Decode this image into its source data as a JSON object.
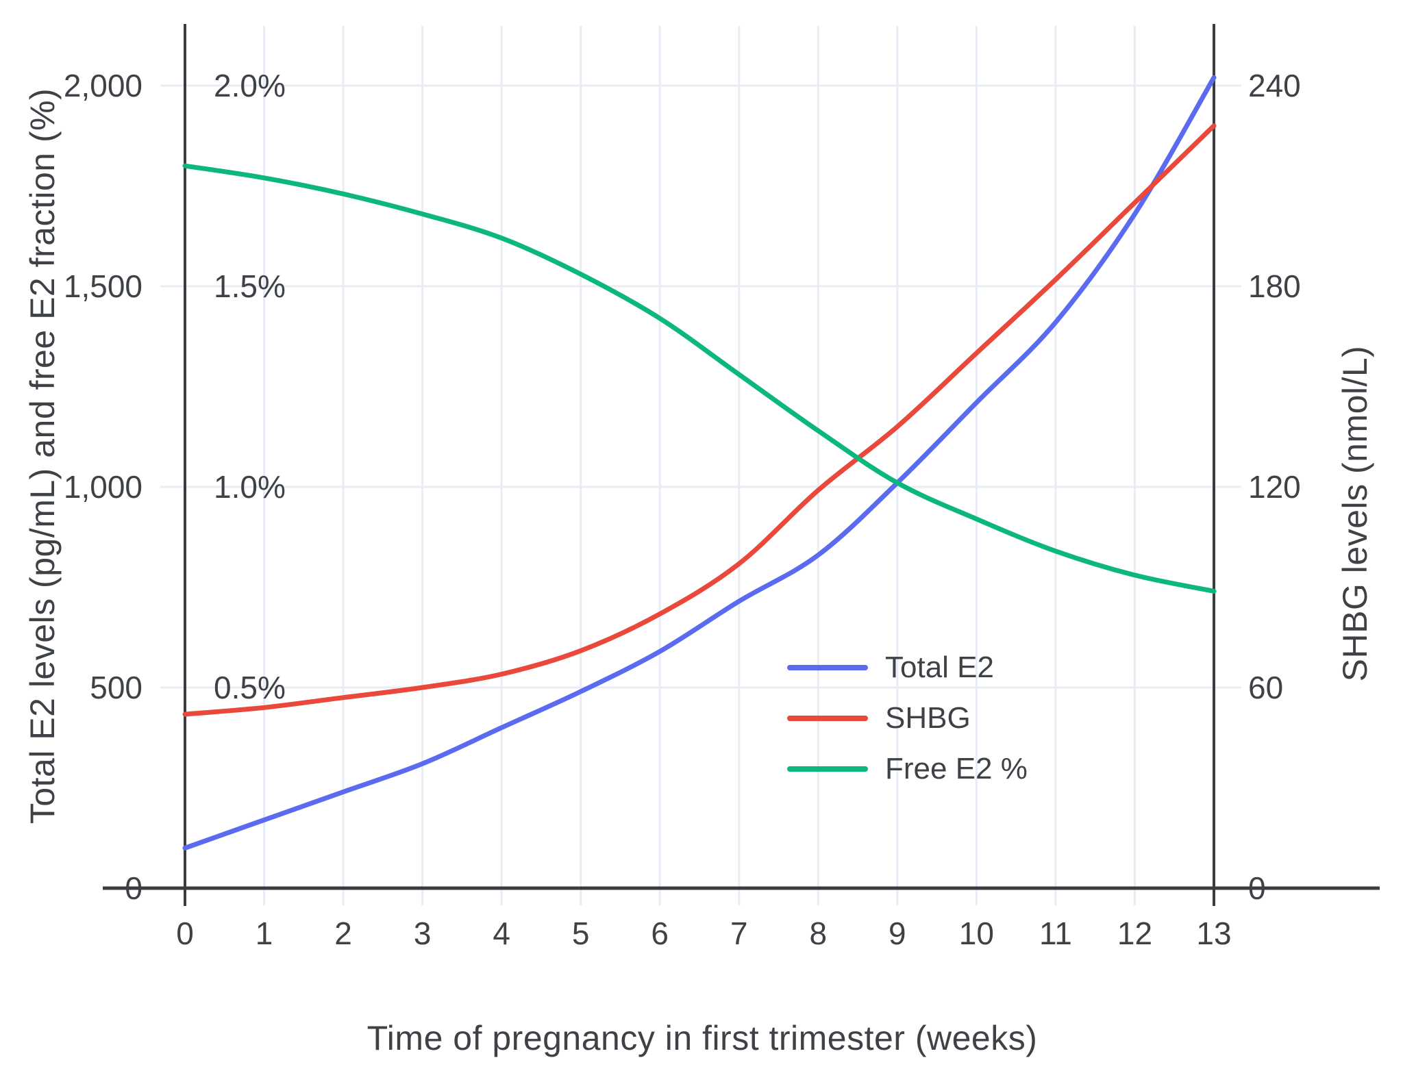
{
  "colors": {
    "total_e2": "#5a6bf0",
    "shbg": "#e9483a",
    "free_e2_pct": "#0cb77e",
    "grid": "#e8ecf5",
    "axis": "#3a3c3f",
    "text": "#3e4247"
  },
  "axis_titles": {
    "left": "Total E2 levels (pg/mL) and free E2 fraction (%)",
    "right": "SHBG levels (nmol/L)",
    "bottom": "Time of pregnancy in first trimester (weeks)"
  },
  "legend": {
    "items": [
      {
        "label": "Total E2",
        "series": "total_e2"
      },
      {
        "label": "SHBG",
        "series": "shbg"
      },
      {
        "label": "Free E2 %",
        "series": "free_e2_pct"
      }
    ]
  },
  "chart_data": {
    "type": "line",
    "x": [
      0,
      1,
      2,
      3,
      4,
      5,
      6,
      7,
      8,
      9,
      10,
      11,
      12,
      13
    ],
    "x_tick_labels": [
      "0",
      "1",
      "2",
      "3",
      "4",
      "5",
      "6",
      "7",
      "8",
      "9",
      "10",
      "11",
      "12",
      "13"
    ],
    "xlabel": "Time of pregnancy in first trimester (weeks)",
    "ylabel_left": "Total E2 levels (pg/mL) and free E2 fraction (%)",
    "ylabel_right": "SHBG levels (nmol/L)",
    "ylim_left": [
      0,
      2150
    ],
    "ylim_right": [
      0,
      258
    ],
    "grid": true,
    "legend_position": "inside-center-right",
    "series": [
      {
        "name": "Total E2",
        "key": "total_e2",
        "axis": "left",
        "unit": "pg/mL",
        "values": [
          100,
          170,
          240,
          310,
          400,
          490,
          590,
          715,
          830,
          1010,
          1210,
          1410,
          1680,
          2020
        ]
      },
      {
        "name": "SHBG",
        "key": "shbg",
        "axis": "right",
        "unit": "nmol/L",
        "values": [
          52,
          54,
          57,
          60,
          64,
          71,
          82,
          97,
          119,
          138,
          160,
          182,
          205,
          228
        ]
      },
      {
        "name": "Free E2 %",
        "key": "free_e2_pct",
        "axis": "percent",
        "unit": "%",
        "values": [
          1.8,
          1.77,
          1.73,
          1.68,
          1.62,
          1.53,
          1.42,
          1.28,
          1.14,
          1.01,
          0.92,
          0.84,
          0.78,
          0.74
        ]
      }
    ],
    "left_ticks": [
      {
        "value": 0,
        "label": "0"
      },
      {
        "value": 500,
        "label": "500"
      },
      {
        "value": 1000,
        "label": "1,000"
      },
      {
        "value": 1500,
        "label": "1,500"
      },
      {
        "value": 2000,
        "label": "2,000"
      }
    ],
    "percent_ticks": [
      {
        "value": 0.5,
        "label": "0.5%"
      },
      {
        "value": 1.0,
        "label": "1.0%"
      },
      {
        "value": 1.5,
        "label": "1.5%"
      },
      {
        "value": 2.0,
        "label": "2.0%"
      }
    ],
    "right_ticks": [
      {
        "value": 0,
        "label": "0"
      },
      {
        "value": 60,
        "label": "60"
      },
      {
        "value": 120,
        "label": "120"
      },
      {
        "value": 180,
        "label": "180"
      },
      {
        "value": 240,
        "label": "240"
      }
    ]
  }
}
